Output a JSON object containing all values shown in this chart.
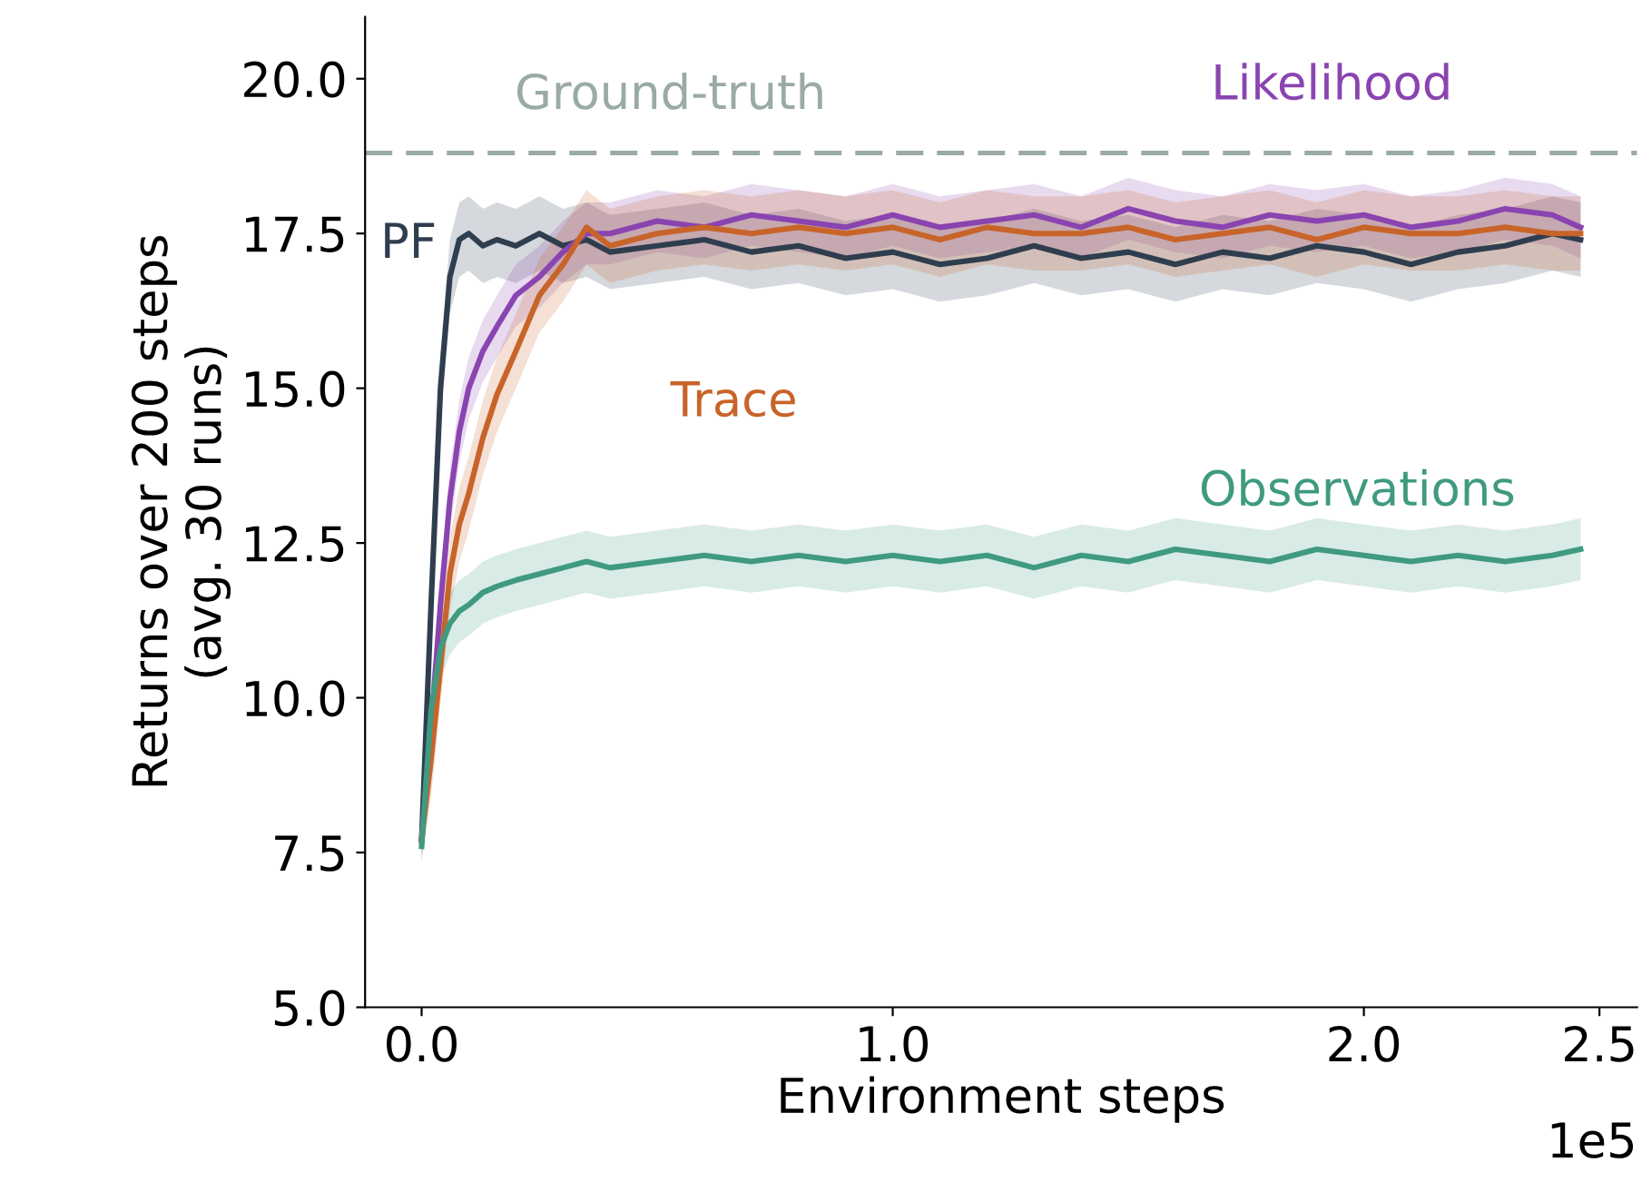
{
  "chart_data": {
    "type": "line",
    "xlabel": "Environment steps",
    "ylabel": "Returns over 200 steps\n(avg. 30 runs)",
    "annotations": [
      "1e5"
    ],
    "x": [
      0,
      0.02,
      0.04,
      0.06,
      0.08,
      0.1,
      0.13,
      0.16,
      0.2,
      0.25,
      0.3,
      0.35,
      0.4,
      0.5,
      0.6,
      0.7,
      0.8,
      0.9,
      1.0,
      1.1,
      1.2,
      1.3,
      1.4,
      1.5,
      1.6,
      1.7,
      1.8,
      1.9,
      2.0,
      2.1,
      2.2,
      2.3,
      2.4,
      2.46
    ],
    "series": [
      {
        "name": "PF",
        "color": "#2f3e4e",
        "values": [
          7.7,
          11.5,
          15.0,
          16.8,
          17.4,
          17.5,
          17.3,
          17.4,
          17.3,
          17.5,
          17.3,
          17.4,
          17.2,
          17.3,
          17.4,
          17.2,
          17.3,
          17.1,
          17.2,
          17.0,
          17.1,
          17.3,
          17.1,
          17.2,
          17.0,
          17.2,
          17.1,
          17.3,
          17.2,
          17.0,
          17.2,
          17.3,
          17.5,
          17.4
        ],
        "lower": [
          7.4,
          10.9,
          14.4,
          16.2,
          16.8,
          16.9,
          16.7,
          16.8,
          16.7,
          16.9,
          16.7,
          16.8,
          16.6,
          16.7,
          16.8,
          16.6,
          16.7,
          16.5,
          16.6,
          16.4,
          16.5,
          16.7,
          16.5,
          16.6,
          16.4,
          16.6,
          16.5,
          16.7,
          16.6,
          16.4,
          16.6,
          16.7,
          16.9,
          16.8
        ],
        "upper": [
          8.0,
          12.1,
          15.6,
          17.4,
          18.0,
          18.1,
          17.9,
          18.0,
          17.9,
          18.1,
          17.9,
          18.0,
          17.8,
          17.9,
          18.0,
          17.8,
          17.9,
          17.7,
          17.8,
          17.6,
          17.7,
          17.9,
          17.7,
          17.8,
          17.6,
          17.8,
          17.7,
          17.9,
          17.8,
          17.6,
          17.8,
          17.9,
          18.1,
          18.0
        ]
      },
      {
        "name": "Likelihood",
        "color": "#8a44b0",
        "values": [
          7.7,
          9.5,
          11.5,
          13.2,
          14.3,
          15.0,
          15.6,
          16.0,
          16.5,
          16.8,
          17.2,
          17.5,
          17.5,
          17.7,
          17.6,
          17.8,
          17.7,
          17.6,
          17.8,
          17.6,
          17.7,
          17.8,
          17.6,
          17.9,
          17.7,
          17.6,
          17.8,
          17.7,
          17.8,
          17.6,
          17.7,
          17.9,
          17.8,
          17.6
        ],
        "lower": [
          7.4,
          9.0,
          11.0,
          12.7,
          13.8,
          14.5,
          15.1,
          15.5,
          16.0,
          16.3,
          16.7,
          17.0,
          17.0,
          17.2,
          17.1,
          17.3,
          17.2,
          17.1,
          17.3,
          17.1,
          17.2,
          17.3,
          17.1,
          17.4,
          17.2,
          17.1,
          17.3,
          17.2,
          17.3,
          17.1,
          17.2,
          17.4,
          17.3,
          17.1
        ],
        "upper": [
          8.0,
          10.0,
          12.0,
          13.7,
          14.8,
          15.5,
          16.1,
          16.5,
          17.0,
          17.3,
          17.7,
          18.0,
          18.0,
          18.2,
          18.1,
          18.3,
          18.2,
          18.1,
          18.3,
          18.1,
          18.2,
          18.3,
          18.1,
          18.4,
          18.2,
          18.1,
          18.3,
          18.2,
          18.3,
          18.1,
          18.2,
          18.4,
          18.3,
          18.1
        ]
      },
      {
        "name": "Trace",
        "color": "#c8642a",
        "values": [
          7.7,
          9.0,
          10.5,
          12.0,
          12.8,
          13.3,
          14.2,
          14.9,
          15.6,
          16.5,
          17.0,
          17.6,
          17.3,
          17.5,
          17.6,
          17.5,
          17.6,
          17.5,
          17.6,
          17.4,
          17.6,
          17.5,
          17.5,
          17.6,
          17.4,
          17.5,
          17.6,
          17.4,
          17.6,
          17.5,
          17.5,
          17.6,
          17.5,
          17.5
        ],
        "lower": [
          7.4,
          8.4,
          9.9,
          11.4,
          12.2,
          12.7,
          13.6,
          14.3,
          15.0,
          15.9,
          16.4,
          17.0,
          16.7,
          16.9,
          17.0,
          16.9,
          17.0,
          16.9,
          17.0,
          16.8,
          17.0,
          16.9,
          16.9,
          17.0,
          16.8,
          16.9,
          17.0,
          16.8,
          17.0,
          16.9,
          16.9,
          17.0,
          16.9,
          16.9
        ],
        "upper": [
          8.0,
          9.6,
          11.1,
          12.6,
          13.4,
          13.9,
          14.8,
          15.5,
          16.2,
          17.1,
          17.6,
          18.2,
          17.9,
          18.1,
          18.2,
          18.1,
          18.2,
          18.1,
          18.2,
          18.0,
          18.2,
          18.1,
          18.1,
          18.2,
          18.0,
          18.1,
          18.2,
          18.0,
          18.2,
          18.1,
          18.1,
          18.2,
          18.1,
          18.1
        ]
      },
      {
        "name": "Observations",
        "color": "#3f9a80",
        "values": [
          7.6,
          9.8,
          10.8,
          11.2,
          11.4,
          11.5,
          11.7,
          11.8,
          11.9,
          12.0,
          12.1,
          12.2,
          12.1,
          12.2,
          12.3,
          12.2,
          12.3,
          12.2,
          12.3,
          12.2,
          12.3,
          12.1,
          12.3,
          12.2,
          12.4,
          12.3,
          12.2,
          12.4,
          12.3,
          12.2,
          12.3,
          12.2,
          12.3,
          12.4
        ],
        "lower": [
          7.3,
          9.3,
          10.3,
          10.7,
          10.9,
          11.0,
          11.2,
          11.3,
          11.4,
          11.5,
          11.6,
          11.7,
          11.6,
          11.7,
          11.8,
          11.7,
          11.8,
          11.7,
          11.8,
          11.7,
          11.8,
          11.6,
          11.8,
          11.7,
          11.9,
          11.8,
          11.7,
          11.9,
          11.8,
          11.7,
          11.8,
          11.7,
          11.8,
          11.9
        ],
        "upper": [
          7.9,
          10.3,
          11.3,
          11.7,
          11.9,
          12.0,
          12.2,
          12.3,
          12.4,
          12.5,
          12.6,
          12.7,
          12.6,
          12.7,
          12.8,
          12.7,
          12.8,
          12.7,
          12.8,
          12.7,
          12.8,
          12.6,
          12.8,
          12.7,
          12.9,
          12.8,
          12.7,
          12.9,
          12.8,
          12.7,
          12.8,
          12.7,
          12.8,
          12.9
        ]
      }
    ],
    "ref_lines": [
      {
        "axis": "y",
        "value": 18.8,
        "label": "Ground-truth",
        "color": "#9aaaa6",
        "line_style": "dashed"
      }
    ],
    "xlim": [
      -0.12,
      2.58
    ],
    "xticks": [
      {
        "value": 0,
        "label": "0.0"
      },
      {
        "value": 1,
        "label": "1.0"
      },
      {
        "value": 2,
        "label": "2.0"
      },
      2.5
    ],
    "ylim": [
      5,
      21
    ],
    "yticks": [
      {
        "value": 5,
        "label": "5.0"
      },
      {
        "value": 7.5,
        "label": "7.5"
      },
      {
        "value": 10,
        "label": "10.0"
      },
      {
        "value": 12.5,
        "label": "12.5"
      },
      {
        "value": 15,
        "label": "15.0"
      },
      {
        "value": 17.5,
        "label": "17.5"
      },
      {
        "value": 20,
        "label": "20.0"
      }
    ],
    "grid": false,
    "legend": false,
    "marker": "none",
    "line_style": "solid"
  }
}
